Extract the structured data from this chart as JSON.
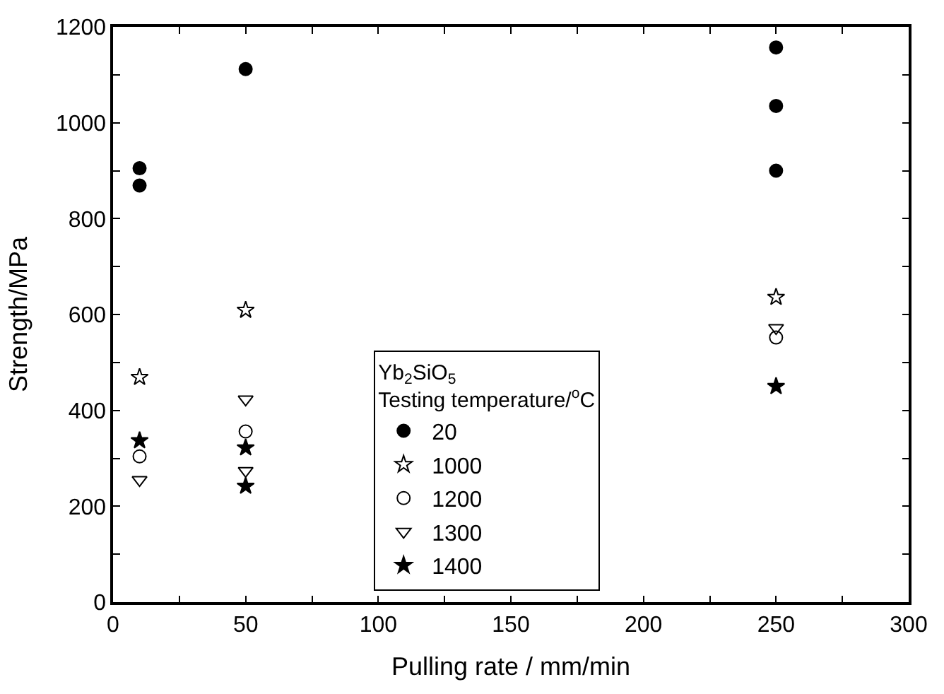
{
  "chart_data": {
    "type": "scatter",
    "xlabel": "Pulling rate / mm/min",
    "ylabel": "Strength/MPa",
    "legend_title": "Yb$_{2}$SiO$_{5}$\nTesting temperature/$^{o}$C",
    "series": [
      {
        "name": "20",
        "color": "#000000",
        "marker": "circle",
        "x": [
          10,
          10,
          50,
          250,
          250,
          250
        ],
        "values": [
          905,
          869,
          1112,
          1157,
          1035,
          900
        ]
      },
      {
        "name": "1000",
        "color": "#000000",
        "marker": "star",
        "x": [
          10,
          50,
          250
        ],
        "values": [
          469,
          609,
          636
        ]
      },
      {
        "name": "1200",
        "color": "#000000",
        "marker": "circle",
        "x": [
          10,
          50,
          250
        ],
        "values": [
          304,
          356,
          552
        ]
      },
      {
        "name": "1300",
        "color": "#000000",
        "marker": "triangle",
        "x": [
          10,
          50,
          50,
          250
        ],
        "values": [
          255,
          423,
          274,
          572
        ]
      },
      {
        "name": "1400",
        "color": "#000000",
        "marker": "star",
        "x": [
          10,
          50,
          50,
          250
        ],
        "values": [
          337,
          322,
          242,
          450
        ]
      }
    ],
    "xlim": [
      0,
      300
    ],
    "ylim": [
      0,
      1200
    ],
    "xticks": [
      0,
      {
        "value": 25,
        "label": null
      },
      50,
      {
        "value": 75,
        "label": null
      },
      100,
      {
        "value": 125,
        "label": null
      },
      150,
      {
        "value": 175,
        "label": null
      },
      200,
      {
        "value": 225,
        "label": null
      },
      250,
      {
        "value": 275,
        "label": null
      },
      300
    ],
    "yticks": [
      0,
      {
        "value": 100,
        "label": null
      },
      200,
      {
        "value": 300,
        "label": null
      },
      400,
      {
        "value": 500,
        "label": null
      },
      600,
      {
        "value": 700,
        "label": null
      },
      800,
      {
        "value": 900,
        "label": null
      },
      1000,
      {
        "value": 1100,
        "label": null
      },
      1200
    ],
    "legend": "bottom"
  }
}
